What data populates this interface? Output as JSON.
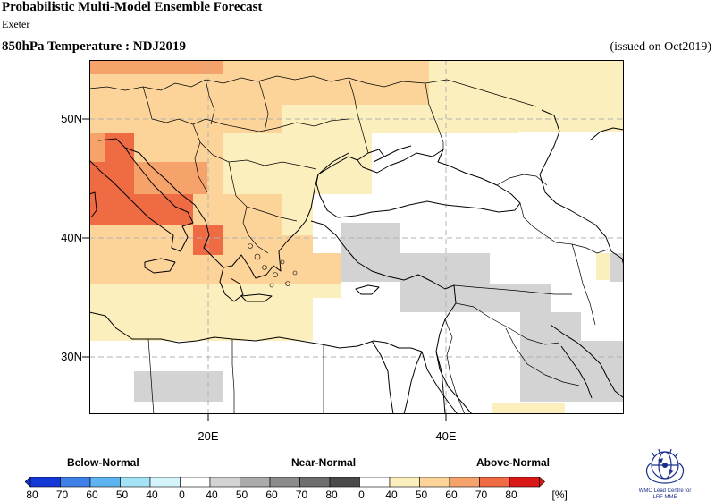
{
  "header": {
    "title": "Probabilistic Multi-Model Ensemble Forecast",
    "center": "Exeter",
    "variable": "850hPa Temperature : NDJ2019",
    "issued": "(issued on Oct2019)"
  },
  "map": {
    "lat_ticks": [
      {
        "label": "50N",
        "value": 50
      },
      {
        "label": "40N",
        "value": 40
      },
      {
        "label": "30N",
        "value": 30
      }
    ],
    "lon_ticks": [
      {
        "label": "20E",
        "value": 20
      },
      {
        "label": "40E",
        "value": 40
      }
    ],
    "extent": {
      "lon_min": 10,
      "lon_max": 55,
      "lat_min": 25,
      "lat_max": 55
    }
  },
  "legend": {
    "categories": [
      "Below-Normal",
      "Near-Normal",
      "Above-Normal"
    ],
    "below": {
      "labels": [
        "80",
        "70",
        "60",
        "50",
        "40"
      ],
      "colors": [
        "#1437d8",
        "#3f7fe8",
        "#5fb3f0",
        "#a3e3f5",
        "#d4f4fb"
      ]
    },
    "near": {
      "labels": [
        "0",
        "40",
        "50",
        "60",
        "70",
        "80"
      ],
      "colors": [
        "#ffffff",
        "#d3d3d3",
        "#ababab",
        "#8b8b8b",
        "#6e6e6e",
        "#4a4a4a"
      ]
    },
    "above": {
      "labels": [
        "0",
        "40",
        "50",
        "60",
        "70",
        "80"
      ],
      "colors": [
        "#ffffff",
        "#fbefbd",
        "#fcd49a",
        "#f6a36b",
        "#ee6b44",
        "#db1818"
      ]
    },
    "unit": "[%]"
  },
  "logo": {
    "line1": "WMO Lead Centre for",
    "line2": "LRF MME"
  }
}
